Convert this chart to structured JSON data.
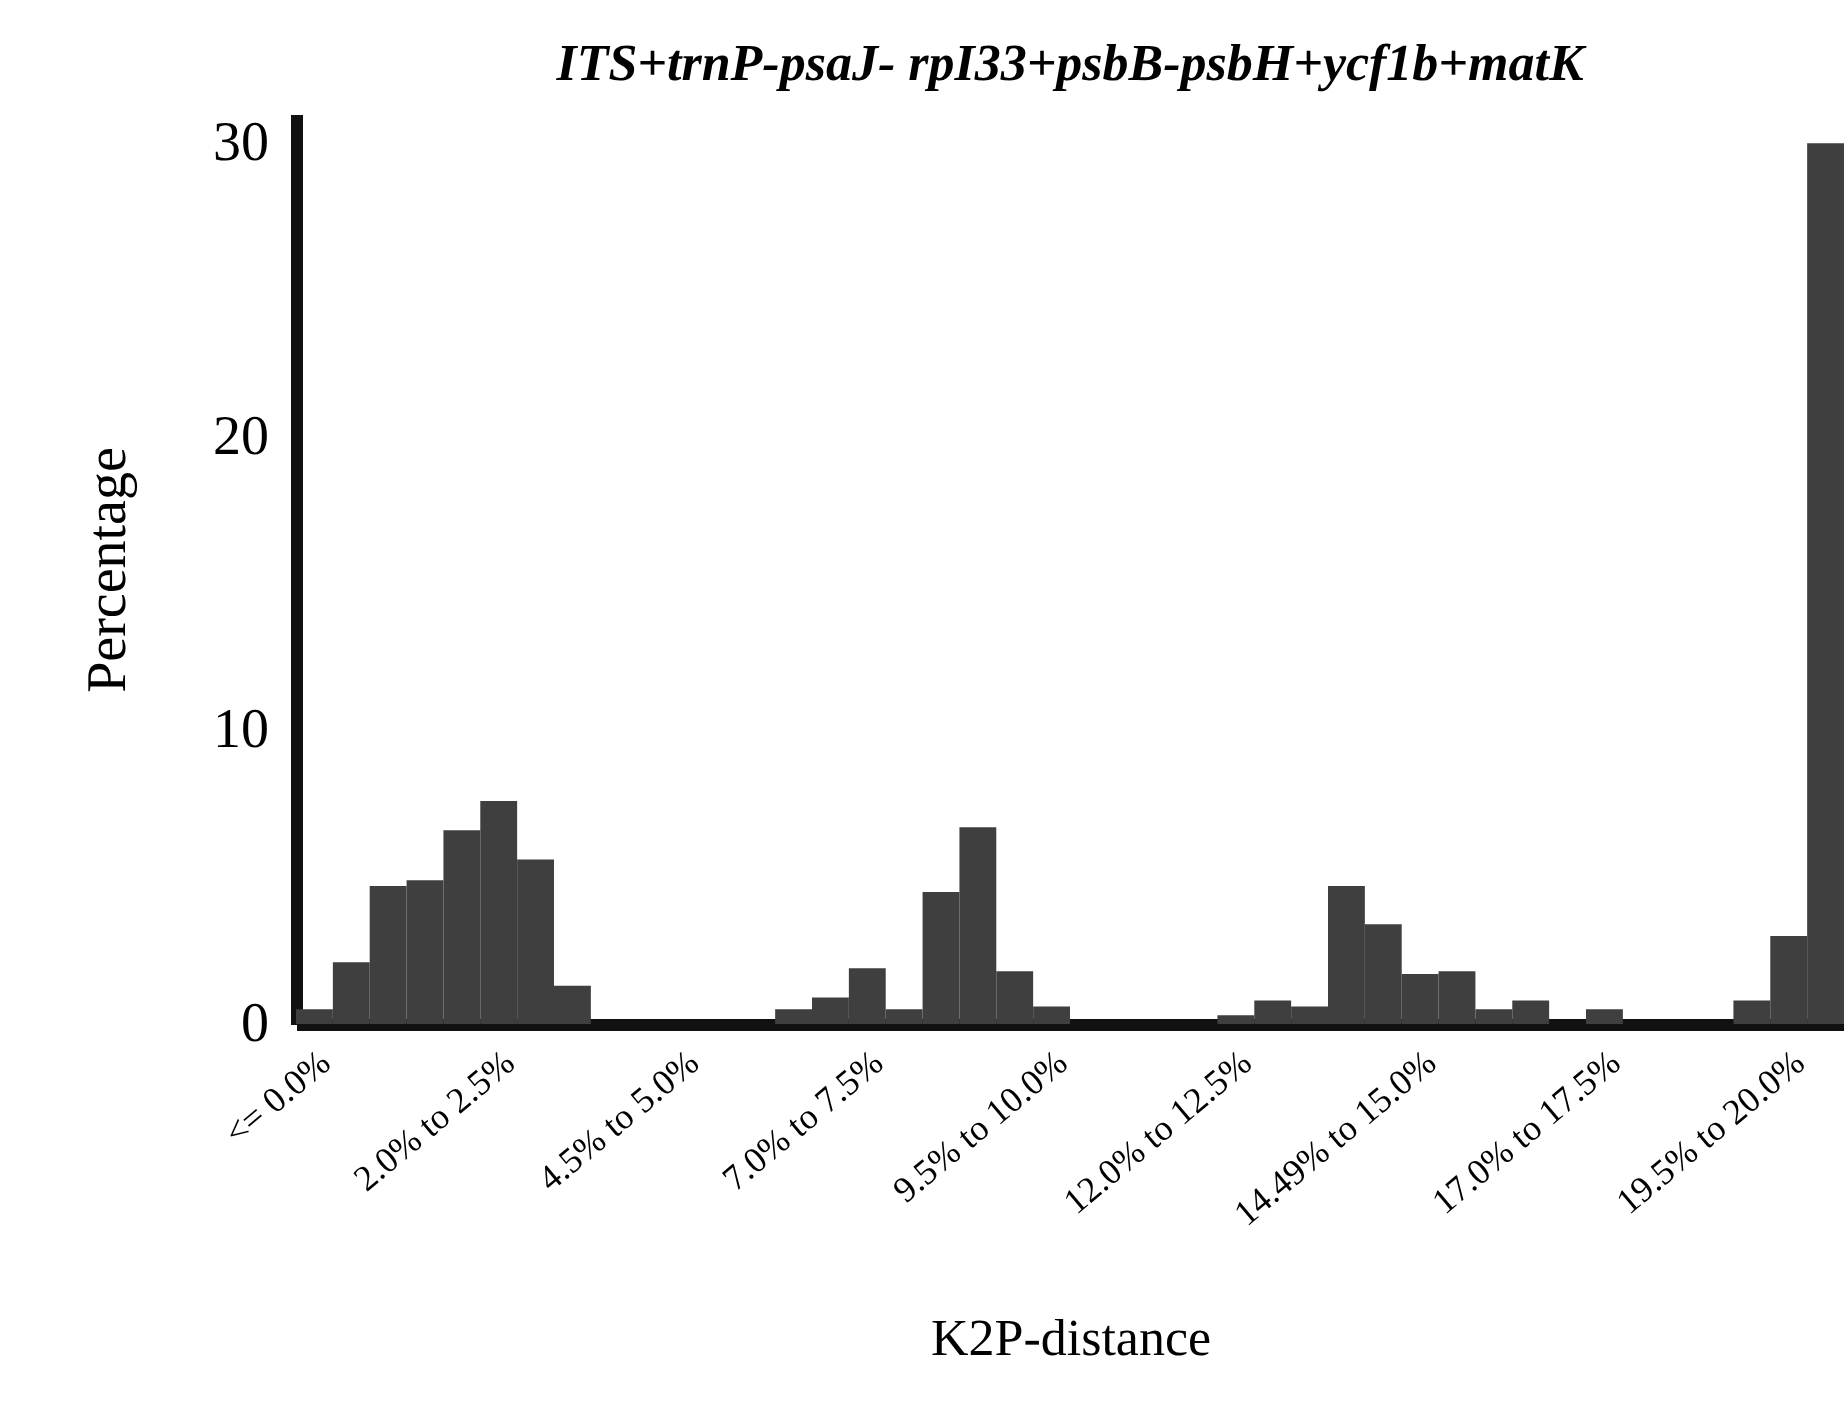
{
  "chart_data": {
    "type": "bar",
    "title": "ITS+trnP-psaJ- rpI33+psbB-psbH+ycf1b+matK",
    "xlabel": "K2P-distance",
    "ylabel": "Percentage",
    "categories": [
      "<= 0.0%",
      null,
      null,
      null,
      null,
      "2.0% to 2.5%",
      null,
      null,
      null,
      null,
      "4.5% to 5.0%",
      null,
      null,
      null,
      null,
      "7.0% to 7.5%",
      null,
      null,
      null,
      null,
      "9.5% to 10.0%",
      null,
      null,
      null,
      null,
      "12.0% to 12.5%",
      null,
      null,
      null,
      null,
      "14.49% to 15.0%",
      null,
      null,
      null,
      null,
      "17.0% to 17.5%",
      null,
      null,
      null,
      null,
      "19.5% to 20.0%",
      null
    ],
    "values": [
      0.5,
      2.1,
      4.7,
      4.9,
      6.6,
      7.6,
      5.6,
      1.3,
      0,
      0,
      0,
      0,
      0,
      0.5,
      0.9,
      1.9,
      0.5,
      4.5,
      6.7,
      1.8,
      0.6,
      0,
      0,
      0,
      0,
      0.3,
      0.8,
      0.6,
      4.7,
      3.4,
      1.7,
      1.8,
      0.5,
      0.8,
      0,
      0.5,
      0,
      0,
      0,
      0.8,
      3.0,
      30
    ],
    "color": "#3f3f3f",
    "ylim": [
      0,
      31
    ],
    "yticks": [
      0,
      10,
      20,
      30
    ],
    "grid": false
  }
}
